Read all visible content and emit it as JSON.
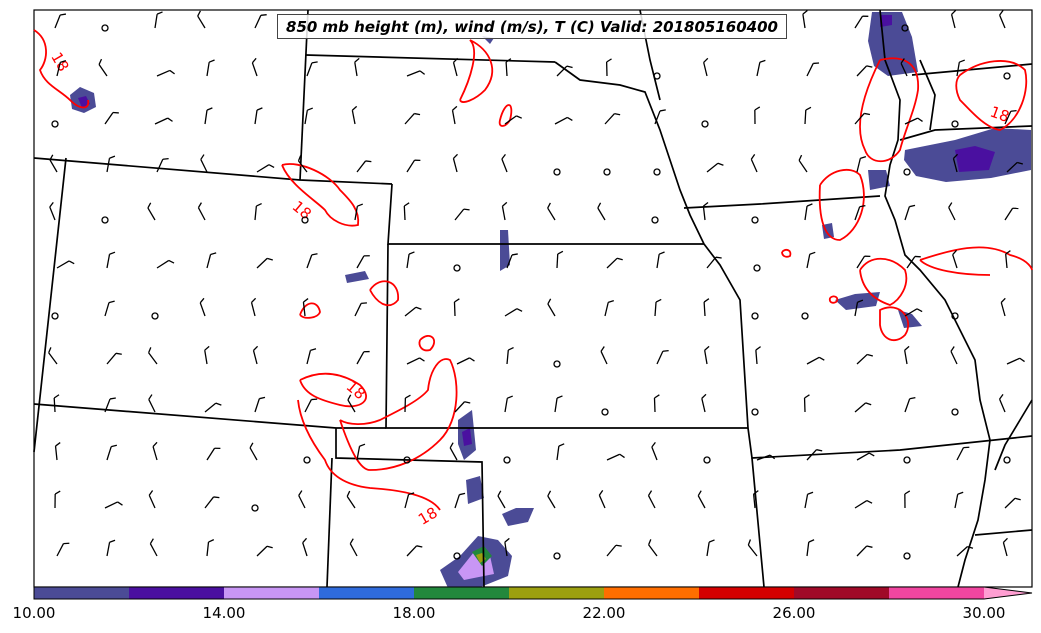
{
  "title": "850 mb height (m), wind (m/s), T (C) Valid: 201805160400",
  "contour_label": "18",
  "colorbar": {
    "ticks": [
      "10.00",
      "14.00",
      "18.00",
      "22.00",
      "26.00",
      "30.00"
    ],
    "colors": [
      "#4b4b96",
      "#4a10a0",
      "#c896f5",
      "#2f6bdc",
      "#22883c",
      "#9ca010",
      "#ff6e00",
      "#d40000",
      "#a00a28",
      "#f046a0",
      "#ff9ed2"
    ]
  },
  "colors": {
    "temperature_contour": "#ff0000",
    "boundaries": "#000000",
    "precip_base": "#4b4b96"
  }
}
